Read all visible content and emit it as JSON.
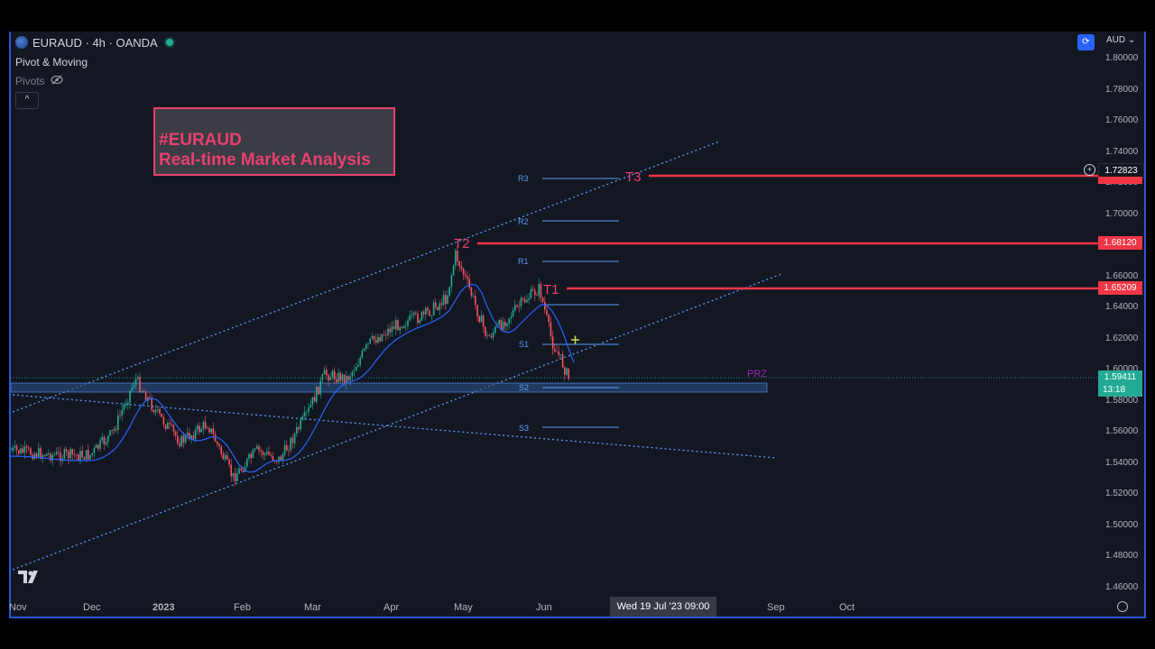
{
  "header": {
    "symbol": "EURAUD · 4h · OANDA",
    "indicator_name": "Pivot & Moving",
    "pivots_label": "Pivots",
    "collapse": "^"
  },
  "annotation_box": {
    "line1": "#EURAUD",
    "line2": "Real-time Market Analysis"
  },
  "toolbar": {
    "currency": "AUD",
    "sync_icon": "sync-icon"
  },
  "price_axis": [
    "1.80000",
    "1.78000",
    "1.76000",
    "1.74000",
    "1.72000",
    "1.70000",
    "1.68000",
    "1.66000",
    "1.64000",
    "1.62000",
    "1.60000",
    "1.58000",
    "1.56000",
    "1.54000",
    "1.52000",
    "1.50000",
    "1.48000",
    "1.46000"
  ],
  "price_tags": {
    "t3": "1.72823",
    "t2": "1.68120",
    "t1": "1.65209",
    "current": "1.59411",
    "countdown": "13:18"
  },
  "time_axis": [
    "Nov",
    "Dec",
    "2023",
    "Feb",
    "Mar",
    "Apr",
    "May",
    "Jun",
    "Sep",
    "Oct"
  ],
  "crosshair_date": "Wed 19 Jul '23   09:00",
  "targets": [
    "T3",
    "T2",
    "T1"
  ],
  "pivot_levels": [
    "R3",
    "R2",
    "R1",
    "S1",
    "S2",
    "S3"
  ],
  "zone_label": "PRZ",
  "colors": {
    "background": "#131722",
    "target": "#f23645",
    "pivot": "#5b9cf6",
    "up": "#22ab94",
    "down": "#f7525f",
    "ma": "#2962ff",
    "annotation": "#e8406e"
  }
}
